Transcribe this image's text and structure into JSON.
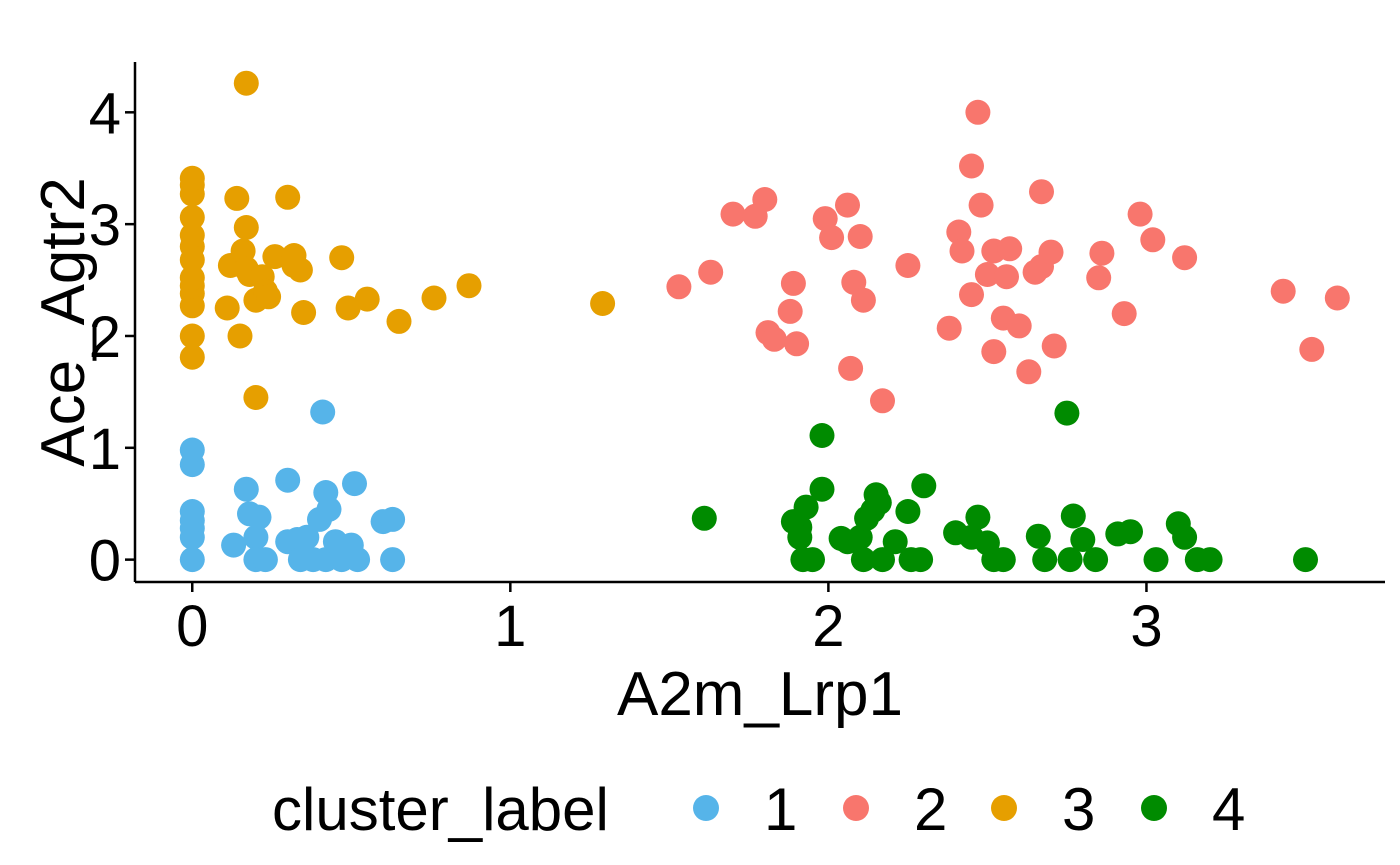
{
  "chart_data": {
    "type": "scatter",
    "xlabel": "A2m_Lrp1",
    "ylabel": "Ace_Agtr2",
    "xlim": [
      -0.18,
      3.75
    ],
    "ylim": [
      -0.2,
      4.45
    ],
    "x_ticks": [
      0,
      1,
      2,
      3
    ],
    "y_ticks": [
      0,
      1,
      2,
      3,
      4
    ],
    "x_tick_labels": [
      "0",
      "1",
      "2",
      "3"
    ],
    "y_tick_labels": [
      "0",
      "1",
      "2",
      "3",
      "4"
    ],
    "grid": false,
    "legend": {
      "title": "cluster_label",
      "position": "bottom"
    },
    "series": [
      {
        "name": "1",
        "color": "#56B4E9",
        "points": [
          [
            0.0,
            0.0
          ],
          [
            0.0,
            0.2
          ],
          [
            0.0,
            0.28
          ],
          [
            0.0,
            0.35
          ],
          [
            0.0,
            0.43
          ],
          [
            0.0,
            0.85
          ],
          [
            0.0,
            0.98
          ],
          [
            0.13,
            0.13
          ],
          [
            0.17,
            0.63
          ],
          [
            0.18,
            0.41
          ],
          [
            0.2,
            0.2
          ],
          [
            0.2,
            0.0
          ],
          [
            0.21,
            0.38
          ],
          [
            0.23,
            0.0
          ],
          [
            0.3,
            0.71
          ],
          [
            0.3,
            0.16
          ],
          [
            0.33,
            0.18
          ],
          [
            0.34,
            0.0
          ],
          [
            0.36,
            0.2
          ],
          [
            0.38,
            0.0
          ],
          [
            0.4,
            0.36
          ],
          [
            0.41,
            1.32
          ],
          [
            0.42,
            0.0
          ],
          [
            0.42,
            0.6
          ],
          [
            0.43,
            0.45
          ],
          [
            0.45,
            0.16
          ],
          [
            0.47,
            0.0
          ],
          [
            0.5,
            0.13
          ],
          [
            0.52,
            0.0
          ],
          [
            0.51,
            0.68
          ],
          [
            0.6,
            0.34
          ],
          [
            0.63,
            0.36
          ],
          [
            0.63,
            0.0
          ]
        ]
      },
      {
        "name": "2",
        "color": "#F8766D",
        "points": [
          [
            1.53,
            2.44
          ],
          [
            1.63,
            2.57
          ],
          [
            1.7,
            3.09
          ],
          [
            1.77,
            3.07
          ],
          [
            1.8,
            3.22
          ],
          [
            1.81,
            2.03
          ],
          [
            1.83,
            1.97
          ],
          [
            1.88,
            2.22
          ],
          [
            1.89,
            2.47
          ],
          [
            1.9,
            1.93
          ],
          [
            1.99,
            3.05
          ],
          [
            2.01,
            2.88
          ],
          [
            2.06,
            3.17
          ],
          [
            2.07,
            1.71
          ],
          [
            2.08,
            2.48
          ],
          [
            2.1,
            2.89
          ],
          [
            2.11,
            2.32
          ],
          [
            2.17,
            1.42
          ],
          [
            2.25,
            2.63
          ],
          [
            2.38,
            2.07
          ],
          [
            2.41,
            2.93
          ],
          [
            2.42,
            2.76
          ],
          [
            2.45,
            2.37
          ],
          [
            2.45,
            3.52
          ],
          [
            2.47,
            4.0
          ],
          [
            2.48,
            3.17
          ],
          [
            2.5,
            2.55
          ],
          [
            2.52,
            2.76
          ],
          [
            2.52,
            1.86
          ],
          [
            2.55,
            2.16
          ],
          [
            2.56,
            2.53
          ],
          [
            2.57,
            2.78
          ],
          [
            2.6,
            2.09
          ],
          [
            2.63,
            1.68
          ],
          [
            2.65,
            2.57
          ],
          [
            2.67,
            3.29
          ],
          [
            2.67,
            2.62
          ],
          [
            2.7,
            2.75
          ],
          [
            2.71,
            1.91
          ],
          [
            2.85,
            2.52
          ],
          [
            2.86,
            2.74
          ],
          [
            2.93,
            2.2
          ],
          [
            2.98,
            3.09
          ],
          [
            3.02,
            2.86
          ],
          [
            3.12,
            2.7
          ],
          [
            3.43,
            2.4
          ],
          [
            3.52,
            1.88
          ],
          [
            3.6,
            2.34
          ]
        ]
      },
      {
        "name": "3",
        "color": "#E69F00",
        "points": [
          [
            0.0,
            1.81
          ],
          [
            0.0,
            2.0
          ],
          [
            0.0,
            2.27
          ],
          [
            0.0,
            2.38
          ],
          [
            0.0,
            2.45
          ],
          [
            0.0,
            2.52
          ],
          [
            0.0,
            2.68
          ],
          [
            0.0,
            2.8
          ],
          [
            0.0,
            2.9
          ],
          [
            0.0,
            3.06
          ],
          [
            0.0,
            3.27
          ],
          [
            0.0,
            3.35
          ],
          [
            0.0,
            3.41
          ],
          [
            0.11,
            2.25
          ],
          [
            0.12,
            2.63
          ],
          [
            0.14,
            3.23
          ],
          [
            0.15,
            2.0
          ],
          [
            0.16,
            2.76
          ],
          [
            0.17,
            2.6
          ],
          [
            0.17,
            4.26
          ],
          [
            0.17,
            2.97
          ],
          [
            0.18,
            2.55
          ],
          [
            0.2,
            2.32
          ],
          [
            0.2,
            1.45
          ],
          [
            0.22,
            2.53
          ],
          [
            0.23,
            2.4
          ],
          [
            0.24,
            2.35
          ],
          [
            0.26,
            2.71
          ],
          [
            0.3,
            3.24
          ],
          [
            0.32,
            2.63
          ],
          [
            0.32,
            2.72
          ],
          [
            0.34,
            2.59
          ],
          [
            0.35,
            2.21
          ],
          [
            0.47,
            2.7
          ],
          [
            0.49,
            2.25
          ],
          [
            0.55,
            2.33
          ],
          [
            0.65,
            2.13
          ],
          [
            0.76,
            2.34
          ],
          [
            0.87,
            2.45
          ],
          [
            1.29,
            2.29
          ]
        ]
      },
      {
        "name": "4",
        "color": "#008B00",
        "points": [
          [
            1.61,
            0.37
          ],
          [
            1.89,
            0.34
          ],
          [
            1.91,
            0.29
          ],
          [
            1.91,
            0.2
          ],
          [
            1.92,
            0.0
          ],
          [
            1.93,
            0.47
          ],
          [
            1.95,
            0.0
          ],
          [
            1.98,
            1.11
          ],
          [
            1.98,
            0.63
          ],
          [
            2.04,
            0.19
          ],
          [
            2.06,
            0.16
          ],
          [
            2.1,
            0.2
          ],
          [
            2.11,
            0.0
          ],
          [
            2.12,
            0.37
          ],
          [
            2.14,
            0.44
          ],
          [
            2.15,
            0.58
          ],
          [
            2.16,
            0.51
          ],
          [
            2.17,
            0.0
          ],
          [
            2.21,
            0.16
          ],
          [
            2.25,
            0.43
          ],
          [
            2.26,
            0.0
          ],
          [
            2.29,
            0.0
          ],
          [
            2.3,
            0.66
          ],
          [
            2.4,
            0.24
          ],
          [
            2.45,
            0.2
          ],
          [
            2.47,
            0.38
          ],
          [
            2.5,
            0.15
          ],
          [
            2.52,
            0.0
          ],
          [
            2.55,
            0.0
          ],
          [
            2.66,
            0.21
          ],
          [
            2.68,
            0.0
          ],
          [
            2.75,
            1.31
          ],
          [
            2.76,
            0.0
          ],
          [
            2.77,
            0.39
          ],
          [
            2.8,
            0.18
          ],
          [
            2.84,
            0.0
          ],
          [
            2.91,
            0.23
          ],
          [
            2.95,
            0.25
          ],
          [
            3.03,
            0.0
          ],
          [
            3.1,
            0.32
          ],
          [
            3.12,
            0.2
          ],
          [
            3.16,
            0.0
          ],
          [
            3.2,
            0.0
          ],
          [
            3.5,
            0.0
          ]
        ]
      }
    ]
  }
}
